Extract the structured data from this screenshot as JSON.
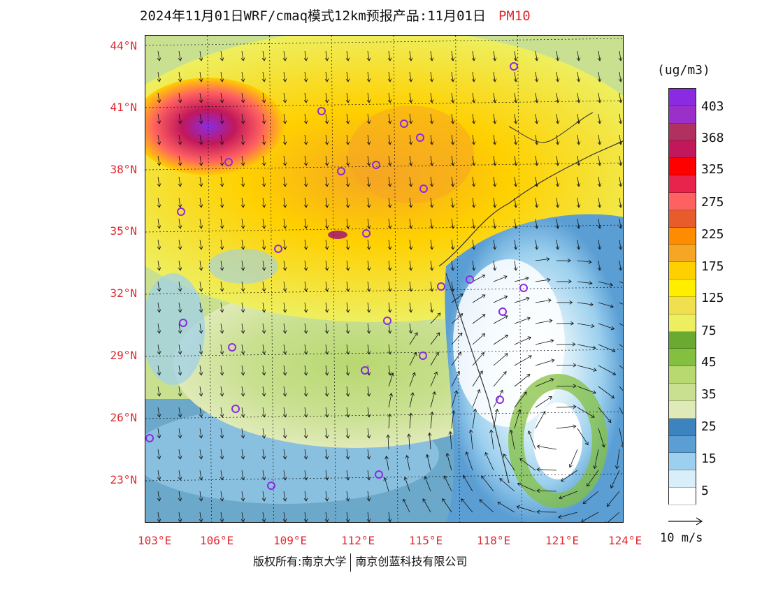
{
  "title": {
    "main": "2024年11月01日WRF/cmaq模式12km预报产品:11月01日",
    "variable": "PM10"
  },
  "map": {
    "lat_labels": [
      "44°N",
      "41°N",
      "38°N",
      "35°N",
      "32°N",
      "29°N",
      "26°N",
      "23°N"
    ],
    "lon_labels": [
      "103°E",
      "106°E",
      "109°E",
      "112°E",
      "115°E",
      "118°E",
      "121°E",
      "124°E"
    ],
    "lat_ticks": [
      44,
      41,
      38,
      35,
      32,
      29,
      26,
      23
    ],
    "lon_ticks": [
      103,
      106,
      109,
      112,
      115,
      118,
      121,
      124
    ],
    "station_marker_color": "#8a2be2"
  },
  "legend": {
    "unit": "(ug/m3)",
    "levels": [
      "403",
      "368",
      "325",
      "275",
      "225",
      "175",
      "125",
      "75",
      "45",
      "35",
      "25",
      "15",
      "5"
    ],
    "colors": [
      "#8a2be2",
      "#9b2fc9",
      "#b03060",
      "#c2185b",
      "#ff0000",
      "#e8244d",
      "#ff6060",
      "#e85c2c",
      "#ff8c00",
      "#f5a623",
      "#ffd000",
      "#ffee00",
      "#f0e050",
      "#eeef60",
      "#6aaa30",
      "#84c040",
      "#b8d870",
      "#c8e090",
      "#e0eab8",
      "#3c84c0",
      "#5a9ed4",
      "#9cd0ee",
      "#d8eef8",
      "#ffffff"
    ]
  },
  "wind_reference": {
    "label": "10 m/s"
  },
  "footer": {
    "left": "版权所有:南京大学",
    "right": "南京创蓝科技有限公司"
  }
}
